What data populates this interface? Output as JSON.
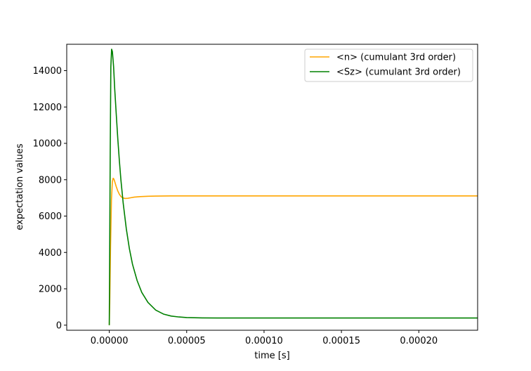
{
  "chart_data": {
    "type": "line",
    "title": "",
    "xlabel": "time [s]",
    "ylabel": "expectation values",
    "xlim": [
      -2.75e-05,
      0.000238
    ],
    "ylim": [
      -280,
      15450
    ],
    "xticks": [
      0.0,
      5e-05,
      0.0001,
      0.00015,
      0.0002
    ],
    "xtick_labels": [
      "0.00000",
      "0.00005",
      "0.00010",
      "0.00015",
      "0.00020"
    ],
    "yticks": [
      0,
      2000,
      4000,
      6000,
      8000,
      10000,
      12000,
      14000
    ],
    "ytick_labels": [
      "0",
      "2000",
      "4000",
      "6000",
      "8000",
      "10000",
      "12000",
      "14000"
    ],
    "grid": false,
    "legend_position": "upper right",
    "series": [
      {
        "name": "<n> (cumulant 3rd order)",
        "color": "#ffa500",
        "x": [
          0.0,
          3e-07,
          8e-07,
          1.4e-06,
          2e-06,
          2.5e-06,
          3e-06,
          3.5e-06,
          4.5e-06,
          5.5e-06,
          6.5e-06,
          7.5e-06,
          8.5e-06,
          1e-05,
          1.2e-05,
          1.4e-05,
          1.6e-05,
          2e-05,
          2.5e-05,
          3e-05,
          4e-05,
          5e-05,
          6e-05,
          8e-05,
          0.0001,
          0.00015,
          0.0002,
          0.000238
        ],
        "y": [
          0,
          1200,
          4300,
          6900,
          7900,
          8080,
          8030,
          7900,
          7620,
          7380,
          7200,
          7080,
          7010,
          6970,
          6980,
          7010,
          7040,
          7070,
          7090,
          7100,
          7110,
          7110,
          7110,
          7110,
          7110,
          7110,
          7110,
          7110
        ]
      },
      {
        "name": "<Sz> (cumulant 3rd order)",
        "color": "#008000",
        "x": [
          0.0,
          2e-07,
          6e-07,
          1e-06,
          1.5e-06,
          2e-06,
          2.8e-06,
          3.5e-06,
          4.5e-06,
          5.5e-06,
          6.5e-06,
          7.5e-06,
          9e-06,
          1.1e-05,
          1.3e-05,
          1.5e-05,
          1.8e-05,
          2.1e-05,
          2.5e-05,
          3e-05,
          3.5e-05,
          4e-05,
          4.5e-05,
          5e-05,
          6e-05,
          7e-05,
          8e-05,
          0.0001,
          0.00012,
          0.00015,
          0.0002,
          0.000238
        ],
        "y": [
          0,
          3000,
          9500,
          14200,
          15180,
          15050,
          14200,
          13000,
          11600,
          10250,
          9050,
          8000,
          6700,
          5300,
          4200,
          3350,
          2450,
          1800,
          1250,
          830,
          610,
          500,
          450,
          420,
          400,
          395,
          395,
          395,
          395,
          395,
          395,
          395
        ]
      }
    ]
  }
}
